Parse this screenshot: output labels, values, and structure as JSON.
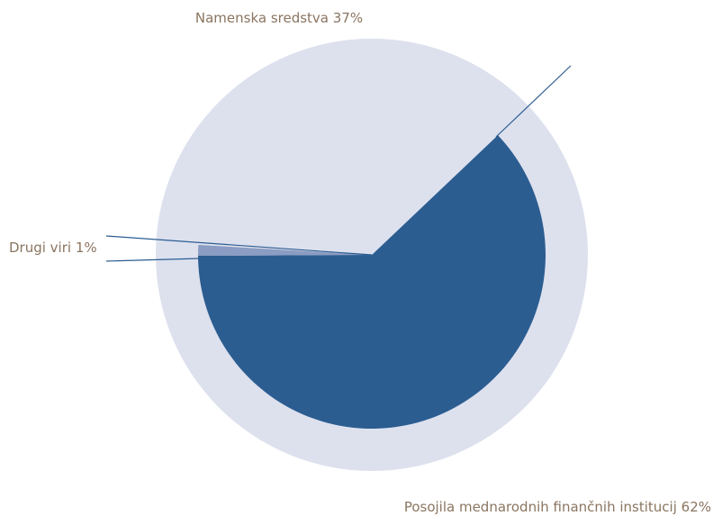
{
  "chart_data": {
    "type": "pie",
    "categories": [
      "Posojila mednarodnih finančnih institucij",
      "Drugi viri",
      "Namenska sredstva"
    ],
    "values": [
      62,
      1,
      37
    ],
    "value_labels": [
      "62%",
      "1%",
      "37%"
    ],
    "colors": [
      "#2c5d91",
      "#8b9dc3",
      "#dde1ee"
    ]
  }
}
